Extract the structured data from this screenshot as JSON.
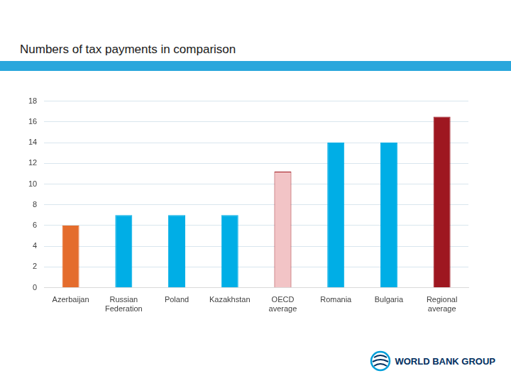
{
  "chart_data": {
    "type": "bar",
    "title": "Numbers of tax payments in comparison",
    "categories": [
      "Azerbaijan",
      "Russian Federation",
      "Poland",
      "Kazakhstan",
      "OECD average",
      "Romania",
      "Bulgaria",
      "Regional average"
    ],
    "values": [
      6,
      7,
      7,
      7,
      11.2,
      14,
      14,
      16.5
    ],
    "colors": [
      "#e46c2c",
      "#00aee6",
      "#00aee6",
      "#00aee6",
      "#f2c4c6",
      "#00aee6",
      "#00aee6",
      "#9e1720"
    ],
    "ylim": [
      0,
      18
    ],
    "yticks": [
      0,
      2,
      4,
      6,
      8,
      10,
      12,
      14,
      16,
      18
    ],
    "grid": true,
    "annotations": [
      "WORLD BANK GROUP"
    ]
  }
}
